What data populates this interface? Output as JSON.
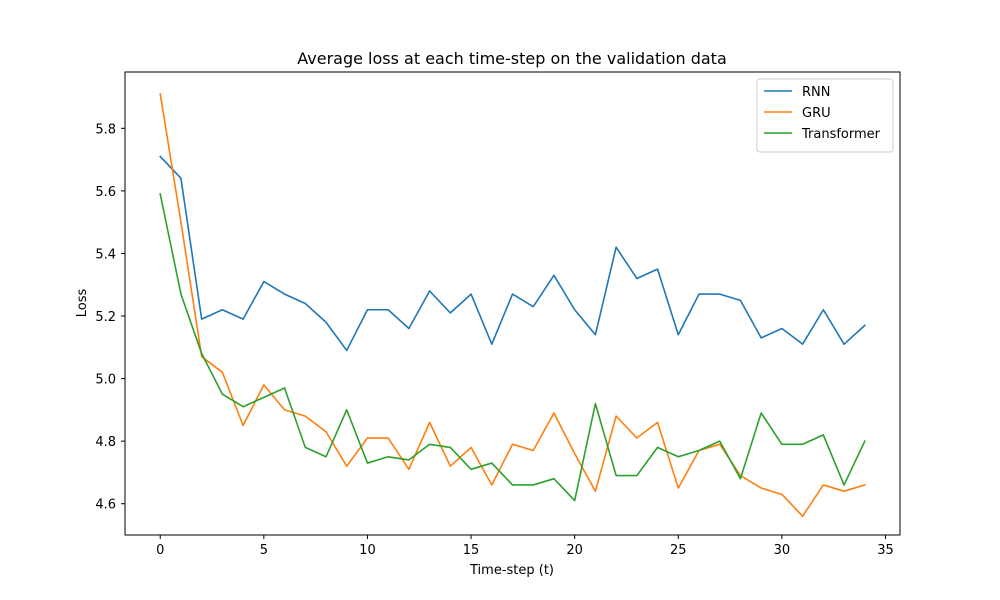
{
  "chart_data": {
    "type": "line",
    "title": "Average loss at each time-step on the validation data",
    "xlabel": "Time-step (t)",
    "ylabel": "Loss",
    "xlim": [
      -1.7,
      35.7
    ],
    "ylim": [
      4.5,
      5.98
    ],
    "xticks": [
      0,
      5,
      10,
      15,
      20,
      25,
      30,
      35
    ],
    "yticks": [
      4.6,
      4.8,
      5.0,
      5.2,
      5.4,
      5.6,
      5.8
    ],
    "xtick_labels": [
      "0",
      "5",
      "10",
      "15",
      "20",
      "25",
      "30",
      "35"
    ],
    "ytick_labels": [
      "4.6",
      "4.8",
      "5.0",
      "5.2",
      "5.4",
      "5.6",
      "5.8"
    ],
    "grid": false,
    "legend_position": "top-right",
    "x": [
      0,
      1,
      2,
      3,
      4,
      5,
      6,
      7,
      8,
      9,
      10,
      11,
      12,
      13,
      14,
      15,
      16,
      17,
      18,
      19,
      20,
      21,
      22,
      23,
      24,
      25,
      26,
      27,
      28,
      29,
      30,
      31,
      32,
      33,
      34
    ],
    "series": [
      {
        "name": "RNN",
        "color": "#1f77b4",
        "values": [
          5.71,
          5.64,
          5.19,
          5.22,
          5.19,
          5.31,
          5.27,
          5.24,
          5.18,
          5.09,
          5.22,
          5.22,
          5.16,
          5.28,
          5.21,
          5.27,
          5.11,
          5.27,
          5.23,
          5.33,
          5.22,
          5.14,
          5.42,
          5.32,
          5.35,
          5.14,
          5.27,
          5.27,
          5.25,
          5.13,
          5.16,
          5.11,
          5.22,
          5.11,
          5.17
        ]
      },
      {
        "name": "GRU",
        "color": "#ff7f0e",
        "values": [
          5.91,
          5.5,
          5.07,
          5.02,
          4.85,
          4.98,
          4.9,
          4.88,
          4.83,
          4.72,
          4.81,
          4.81,
          4.71,
          4.86,
          4.72,
          4.78,
          4.66,
          4.79,
          4.77,
          4.89,
          4.76,
          4.64,
          4.88,
          4.81,
          4.86,
          4.65,
          4.77,
          4.79,
          4.69,
          4.65,
          4.63,
          4.56,
          4.66,
          4.64,
          4.66
        ]
      },
      {
        "name": "Transformer",
        "color": "#2ca02c",
        "values": [
          5.59,
          5.27,
          5.08,
          4.95,
          4.91,
          4.94,
          4.97,
          4.78,
          4.75,
          4.9,
          4.73,
          4.75,
          4.74,
          4.79,
          4.78,
          4.71,
          4.73,
          4.66,
          4.66,
          4.68,
          4.61,
          4.92,
          4.69,
          4.69,
          4.78,
          4.75,
          4.77,
          4.8,
          4.68,
          4.89,
          4.79,
          4.79,
          4.82,
          4.66,
          4.8
        ]
      }
    ]
  }
}
